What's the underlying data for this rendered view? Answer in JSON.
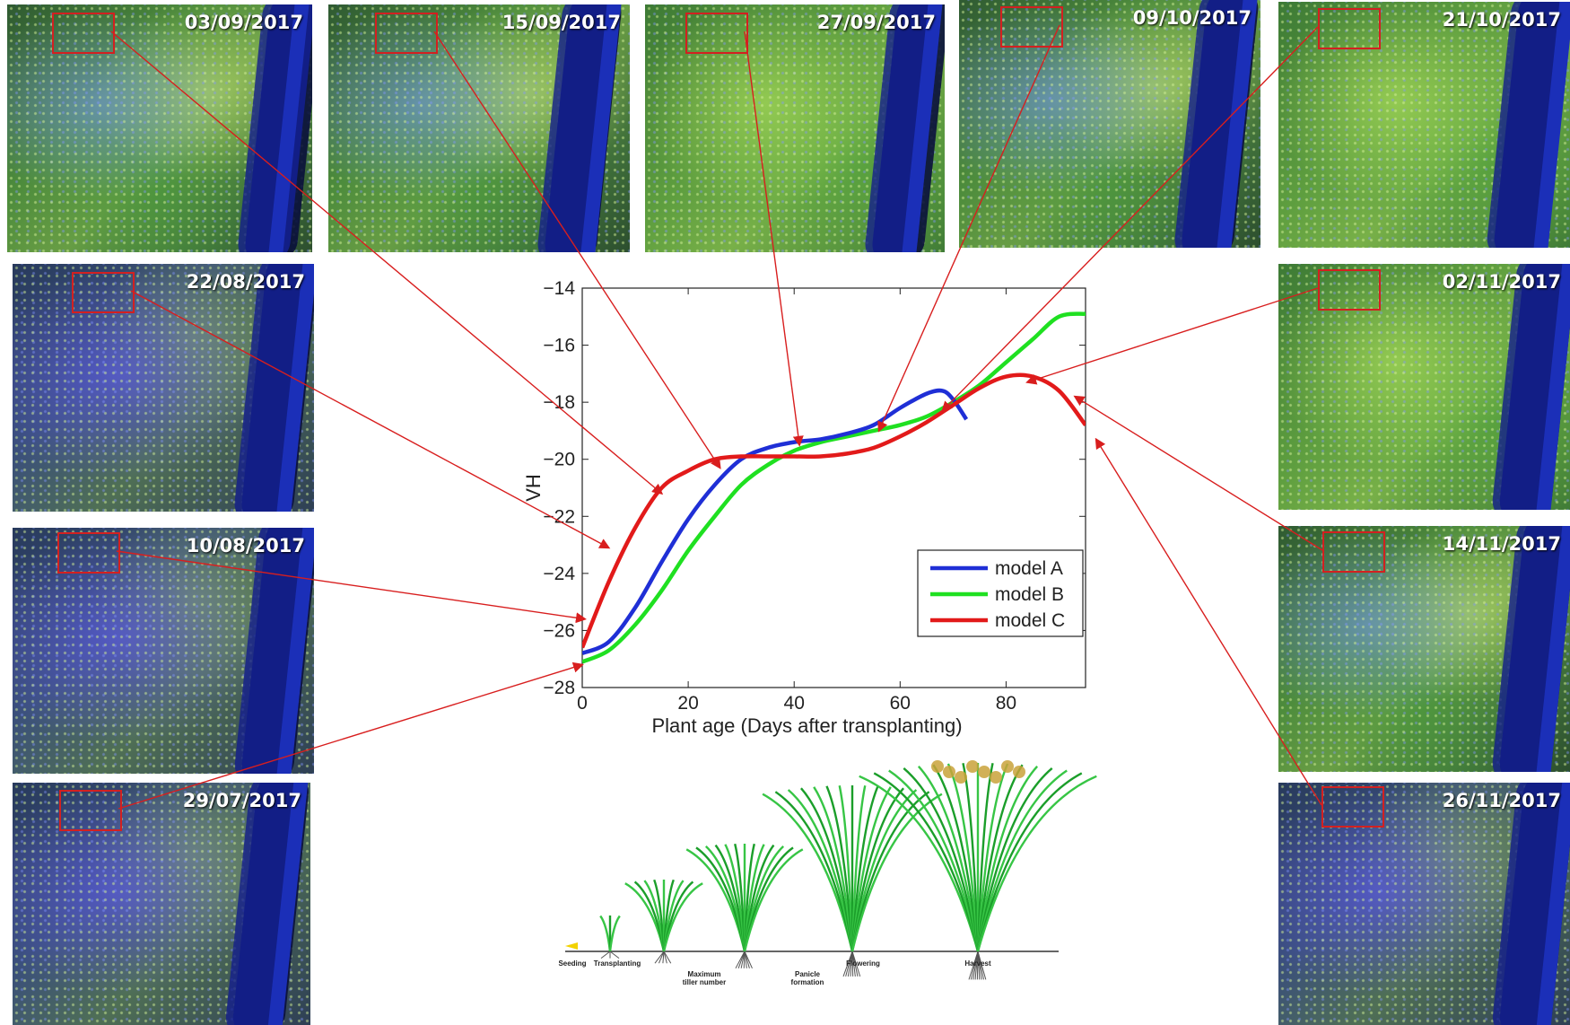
{
  "panels": [
    {
      "id": "p-0309",
      "date": "03/09/2017",
      "tone": "default"
    },
    {
      "id": "p-1509",
      "date": "15/09/2017",
      "tone": "default"
    },
    {
      "id": "p-2709",
      "date": "27/09/2017",
      "tone": "greenish"
    },
    {
      "id": "p-0910",
      "date": "09/10/2017",
      "tone": "default"
    },
    {
      "id": "p-2110",
      "date": "21/10/2017",
      "tone": "greenish"
    },
    {
      "id": "p-2208",
      "date": "22/08/2017",
      "tone": "bluish"
    },
    {
      "id": "p-1008",
      "date": "10/08/2017",
      "tone": "bluish"
    },
    {
      "id": "p-2907",
      "date": "29/07/2017",
      "tone": "bluish"
    },
    {
      "id": "p-0211",
      "date": "02/11/2017",
      "tone": "greenish"
    },
    {
      "id": "p-1411",
      "date": "14/11/2017",
      "tone": "default"
    },
    {
      "id": "p-2611",
      "date": "26/11/2017",
      "tone": "bluish"
    }
  ],
  "chart_data": {
    "type": "line",
    "title": "",
    "xlabel": "Plant age (Days after transplanting)",
    "ylabel": "VH",
    "xlim": [
      0,
      95
    ],
    "ylim": [
      -28,
      -14
    ],
    "xticks": [
      0,
      20,
      40,
      60,
      80
    ],
    "yticks": [
      -28,
      -26,
      -24,
      -22,
      -20,
      -18,
      -16,
      -14
    ],
    "grid": false,
    "legend_position": "lower-right",
    "series": [
      {
        "name": "model A",
        "color": "#1f2fd6",
        "x": [
          0,
          5,
          10,
          15,
          20,
          25,
          30,
          35,
          40,
          45,
          50,
          55,
          60,
          65,
          68,
          70,
          72.5
        ],
        "y": [
          -26.8,
          -26.4,
          -25.2,
          -23.6,
          -22.1,
          -20.9,
          -20.0,
          -19.6,
          -19.4,
          -19.3,
          -19.1,
          -18.8,
          -18.2,
          -17.7,
          -17.6,
          -17.9,
          -18.6
        ]
      },
      {
        "name": "model B",
        "color": "#1fe021",
        "x": [
          0,
          5,
          10,
          15,
          20,
          25,
          30,
          35,
          40,
          45,
          50,
          55,
          60,
          65,
          70,
          75,
          80,
          85,
          90,
          95
        ],
        "y": [
          -27.1,
          -26.7,
          -25.8,
          -24.6,
          -23.2,
          -22.0,
          -20.9,
          -20.2,
          -19.7,
          -19.4,
          -19.2,
          -19.0,
          -18.8,
          -18.5,
          -18.0,
          -17.4,
          -16.6,
          -15.8,
          -15.0,
          -14.9
        ]
      },
      {
        "name": "model C",
        "color": "#e21a1a",
        "x": [
          0,
          5,
          10,
          15,
          20,
          25,
          30,
          35,
          40,
          45,
          50,
          55,
          60,
          65,
          70,
          75,
          80,
          85,
          90,
          95
        ],
        "y": [
          -26.6,
          -24.3,
          -22.4,
          -21.0,
          -20.4,
          -20.0,
          -19.9,
          -19.9,
          -19.9,
          -19.9,
          -19.8,
          -19.6,
          -19.2,
          -18.7,
          -18.1,
          -17.5,
          -17.1,
          -17.1,
          -17.6,
          -18.8
        ]
      }
    ],
    "annotations": [
      {
        "from": "p-2907",
        "x": 0,
        "y": -27.2
      },
      {
        "from": "p-1008",
        "x": 0.5,
        "y": -25.6
      },
      {
        "from": "p-2208",
        "x": 5,
        "y": -23.1
      },
      {
        "from": "p-0309",
        "x": 15,
        "y": -21.2
      },
      {
        "from": "p-1509",
        "x": 26,
        "y": -20.3
      },
      {
        "from": "p-2709",
        "x": 41,
        "y": -19.5
      },
      {
        "from": "p-0910",
        "x": 56,
        "y": -19.0
      },
      {
        "from": "p-2110",
        "x": 68,
        "y": -18.3
      },
      {
        "from": "p-0211",
        "x": 84,
        "y": -17.3
      },
      {
        "from": "p-1411",
        "x": 93,
        "y": -17.8
      },
      {
        "from": "p-2611",
        "x": 97,
        "y": -19.3
      }
    ]
  },
  "growth_stages": {
    "labels": [
      "Seeding",
      "Transplanting",
      "Maximum\ntiller number",
      "Panicle\nformation",
      "Flowering",
      "Harvest"
    ]
  },
  "colors": {
    "arrow": "#d81e1e",
    "roi": "#d32020"
  }
}
